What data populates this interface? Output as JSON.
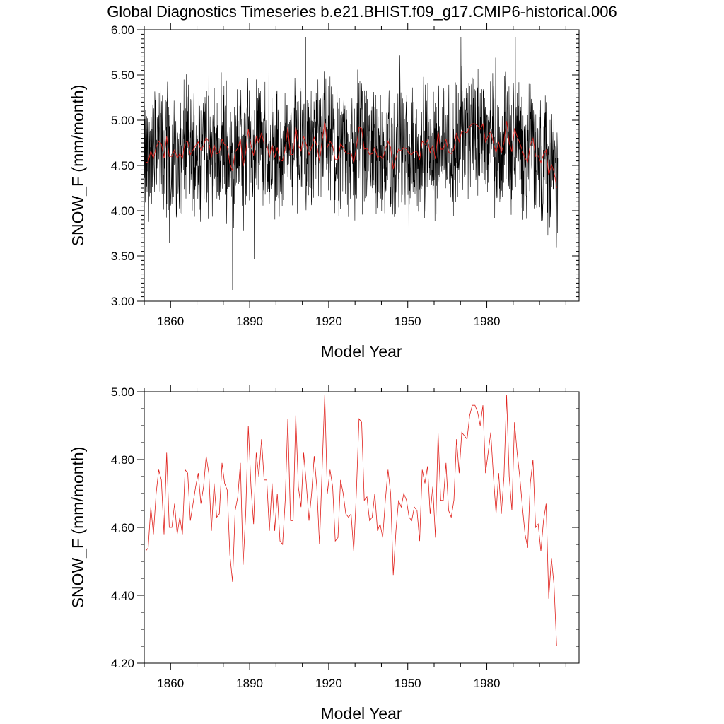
{
  "title": "Global Diagnostics Timeseries b.e21.BHIST.f09_g17.CMIP6-historical.006",
  "colors": {
    "monthly": "#000000",
    "annual": "#e0201b"
  },
  "chart_data": [
    {
      "type": "line",
      "id": "monthly",
      "xlabel": "Model Year",
      "ylabel": "SNOW_F (mm/month)",
      "xlim": [
        1850,
        2015
      ],
      "ylim": [
        3.0,
        6.0
      ],
      "xticks": [
        1860,
        1890,
        1920,
        1950,
        1980
      ],
      "xtick_labels": [
        "1860",
        "1890",
        "1920",
        "1950",
        "1980"
      ],
      "yticks": [
        3.0,
        3.5,
        4.0,
        4.5,
        5.0,
        5.5,
        6.0
      ],
      "ytick_labels": [
        "3.00",
        "3.50",
        "4.00",
        "4.50",
        "5.00",
        "5.50",
        "6.00"
      ],
      "series": [
        {
          "name": "monthly",
          "color": "#000000",
          "start_year": 1850,
          "step": 0.0833,
          "note_values": "monthly mean values oscillating between ~3.3 and ~5.9 around the annual mean",
          "values": []
        },
        {
          "name": "annual",
          "color": "#e0201b",
          "start_year": 1850.5,
          "step": 1,
          "values": [
            4.53,
            4.54,
            4.66,
            4.58,
            4.7,
            4.77,
            4.74,
            4.58,
            4.82,
            4.6,
            4.6,
            4.67,
            4.58,
            4.63,
            4.58,
            4.77,
            4.76,
            4.62,
            4.67,
            4.72,
            4.76,
            4.67,
            4.72,
            4.81,
            4.76,
            4.59,
            4.73,
            4.63,
            4.64,
            4.79,
            4.73,
            4.71,
            4.52,
            4.44,
            4.65,
            4.69,
            4.79,
            4.49,
            4.64,
            4.9,
            4.72,
            4.61,
            4.82,
            4.75,
            4.86,
            4.74,
            4.74,
            4.59,
            4.73,
            4.59,
            4.7,
            4.56,
            4.55,
            4.68,
            4.92,
            4.62,
            4.62,
            4.93,
            4.72,
            4.66,
            4.82,
            4.73,
            4.62,
            4.7,
            4.81,
            4.72,
            4.55,
            4.77,
            4.99,
            4.7,
            4.77,
            4.72,
            4.56,
            4.57,
            4.74,
            4.7,
            4.64,
            4.63,
            4.64,
            4.53,
            4.7,
            4.92,
            4.91,
            4.68,
            4.69,
            4.62,
            4.63,
            4.7,
            4.59,
            4.61,
            4.57,
            4.68,
            4.77,
            4.7,
            4.46,
            4.59,
            4.68,
            4.66,
            4.7,
            4.68,
            4.63,
            4.62,
            4.66,
            4.65,
            4.56,
            4.77,
            4.73,
            4.78,
            4.64,
            4.72,
            4.57,
            4.88,
            4.68,
            4.68,
            4.79,
            4.65,
            4.63,
            4.68,
            4.86,
            4.76,
            4.88,
            4.87,
            4.86,
            4.93,
            4.96,
            4.96,
            4.94,
            4.9,
            4.96,
            4.76,
            4.82,
            4.88,
            4.75,
            4.64,
            4.76,
            4.64,
            4.75,
            4.99,
            4.75,
            4.65,
            4.91,
            4.82,
            4.75,
            4.66,
            4.58,
            4.54,
            4.73,
            4.8,
            4.6,
            4.61,
            4.53,
            4.62,
            4.67,
            4.39,
            4.51,
            4.43,
            4.25
          ]
        }
      ]
    },
    {
      "type": "line",
      "id": "annual",
      "xlabel": "Model Year",
      "ylabel": "SNOW_F (mm/month)",
      "xlim": [
        1850,
        2015
      ],
      "ylim": [
        4.2,
        5.0
      ],
      "xticks": [
        1860,
        1890,
        1920,
        1950,
        1980
      ],
      "xtick_labels": [
        "1860",
        "1890",
        "1920",
        "1950",
        "1980"
      ],
      "yticks": [
        4.2,
        4.4,
        4.6,
        4.8,
        5.0
      ],
      "ytick_labels": [
        "4.20",
        "4.40",
        "4.60",
        "4.80",
        "5.00"
      ],
      "series": [
        {
          "name": "annual",
          "color": "#e0201b",
          "start_year": 1850.5,
          "step": 1,
          "ref": "same as panel 1 annual series"
        }
      ]
    }
  ]
}
